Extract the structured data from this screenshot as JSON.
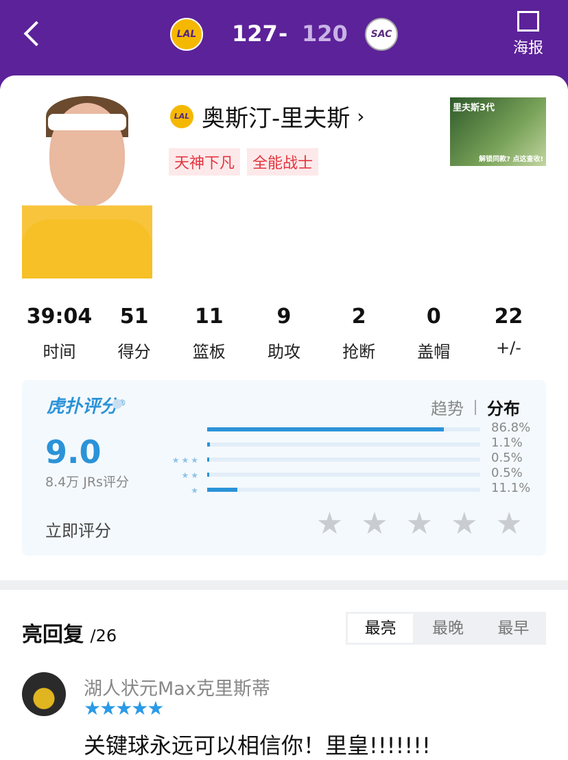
{
  "header": {
    "home_logo": "LAL",
    "home_score": "127",
    "separator": "-",
    "away_score": "120",
    "away_logo": "SAC",
    "poster_label": "海报",
    "colors": {
      "bg": "#5c2299",
      "away_score": "#c9b3e6"
    }
  },
  "player": {
    "name": "奥斯汀-里夫斯",
    "team_logo": "LAL",
    "tags": [
      "天神下凡",
      "全能战士"
    ],
    "ad_title": "里夫斯3代",
    "ad_sub": "解锁同款?\n点这查收!"
  },
  "stats": [
    {
      "value": "39:04",
      "label": "时间"
    },
    {
      "value": "51",
      "label": "得分"
    },
    {
      "value": "11",
      "label": "篮板"
    },
    {
      "value": "9",
      "label": "助攻"
    },
    {
      "value": "2",
      "label": "抢断"
    },
    {
      "value": "0",
      "label": "盖帽"
    },
    {
      "value": "22",
      "label": "+/-"
    }
  ],
  "rating": {
    "brand": "虎扑评分",
    "score": "9.0",
    "count": "8.4万 JRs评分",
    "tabs": [
      "趋势",
      "分布"
    ],
    "active_tab": "分布",
    "rate_now": "立即评分",
    "distribution": [
      {
        "stars": 5,
        "percent": 86.8,
        "label": "86.8%"
      },
      {
        "stars": 4,
        "percent": 1.1,
        "label": "1.1%"
      },
      {
        "stars": 3,
        "percent": 0.5,
        "label": "0.5%"
      },
      {
        "stars": 2,
        "percent": 0.5,
        "label": "0.5%"
      },
      {
        "stars": 1,
        "percent": 11.1,
        "label": "11.1%"
      }
    ]
  },
  "replies": {
    "title": "亮回复",
    "count": "/26",
    "sort": [
      "最亮",
      "最晚",
      "最早"
    ],
    "active_sort": "最亮",
    "items": [
      {
        "user": "湖人状元Max克里斯蒂",
        "stars": 5,
        "text": "关键球永远可以相信你！里皇!!!!!!!"
      }
    ]
  }
}
